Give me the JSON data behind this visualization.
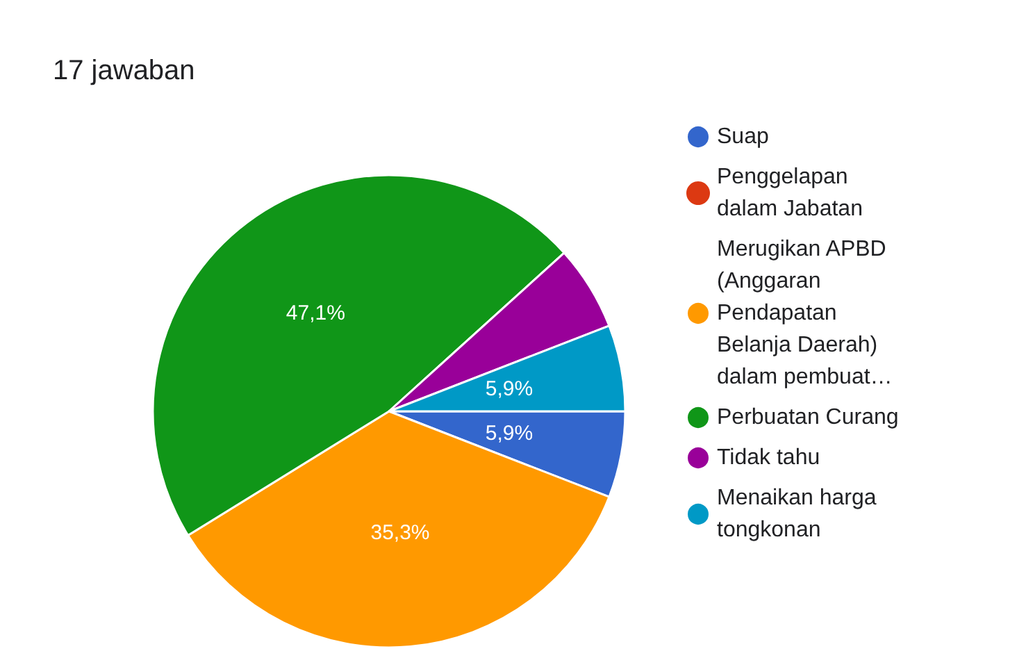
{
  "chart_data": {
    "type": "pie",
    "title": "17 jawaban",
    "categories": [
      "Suap",
      "Penggelapan dalam Jabatan",
      "Merugikan APBD (Anggaran Pendapatan Belanja Daerah) dalam pembuat…",
      "Perbuatan Curang",
      "Tidak tahu",
      "Menaikan harga tongkonan"
    ],
    "values": [
      5.9,
      0,
      35.3,
      47.1,
      5.8,
      5.9
    ],
    "colors": [
      "#3366cc",
      "#dc3912",
      "#ff9900",
      "#109618",
      "#990099",
      "#0099c6"
    ],
    "value_labels": [
      "5,9%",
      null,
      "35,3%",
      "47,1%",
      null,
      "5,9%"
    ],
    "legend": "right"
  }
}
